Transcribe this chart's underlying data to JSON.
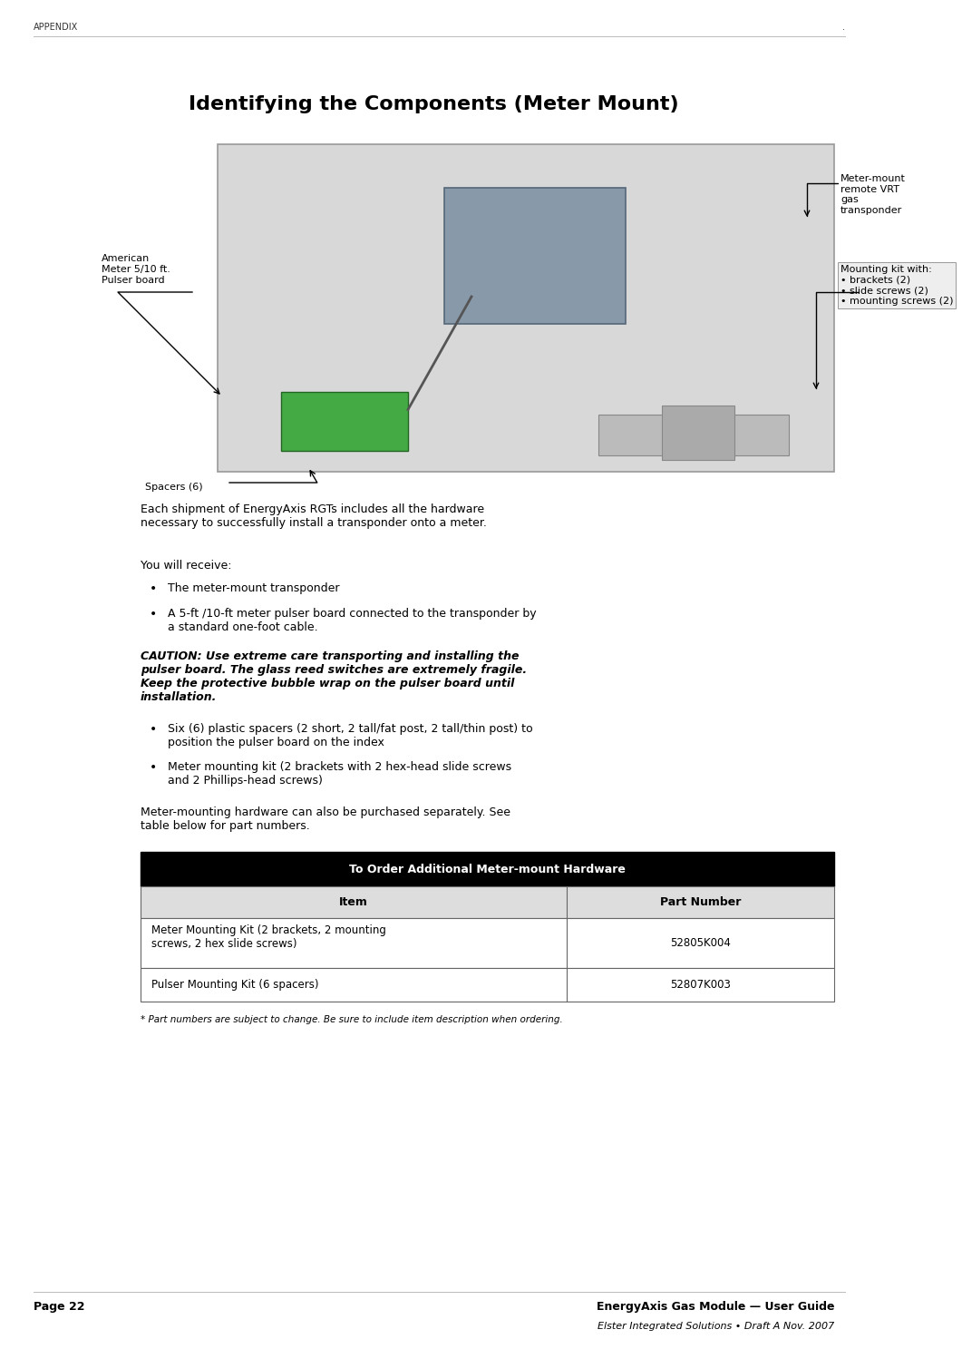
{
  "page_width": 9.37,
  "page_height": 14.67,
  "bg_color": "#ffffff",
  "header_text": "APPENDIX",
  "header_font_size": 7,
  "dot_right": ".",
  "title": "Identifying the Components (Meter Mount)",
  "title_font_size": 16,
  "body_font_size": 9.0,
  "para1": "Each shipment of EnergyAxis RGTs includes all the hardware\nnecessary to successfully install a transponder onto a meter.",
  "para2": "You will receive:",
  "bullet1": "The meter-mount transponder",
  "bullet2": "A 5-ft /10-ft meter pulser board connected to the transponder by\na standard one-foot cable.",
  "caution": "CAUTION: Use extreme care transporting and installing the\npulser board. The glass reed switches are extremely fragile.\nKeep the protective bubble wrap on the pulser board until\ninstallation.",
  "bullet3": "Six (6) plastic spacers (2 short, 2 tall/fat post, 2 tall/thin post) to\nposition the pulser board on the index",
  "bullet4": "Meter mounting kit (2 brackets with 2 hex-head slide screws\nand 2 Phillips-head screws)",
  "para3": "Meter-mounting hardware can also be purchased separately. See\ntable below for part numbers.",
  "table_title": "To Order Additional Meter-mount Hardware",
  "table_header1": "Item",
  "table_header2": "Part Number",
  "table_row1_col1": "Meter Mounting Kit (2 brackets, 2 mounting\nscrews, 2 hex slide screws)",
  "table_row1_col2": "52805K004",
  "table_row2_col1": "Pulser Mounting Kit (6 spacers)",
  "table_row2_col2": "52807K003",
  "footnote": "* Part numbers are subject to change. Be sure to include item description when ordering.",
  "footer_left": "Page 22",
  "footer_right1": "EnergyAxis Gas Module — User Guide",
  "footer_right2": "Elster Integrated Solutions • Draft A Nov. 2007",
  "img_label_pulser": "American\nMeter 5/10 ft.\nPulser board",
  "img_label_mount": "Meter-mount\nremote VRT\ngas\ntransponder",
  "img_label_kit": "Mounting kit with:\n• brackets (2)\n• slide screws (2)\n• mounting screws (2)",
  "img_label_spacers": "Spacers (6)"
}
